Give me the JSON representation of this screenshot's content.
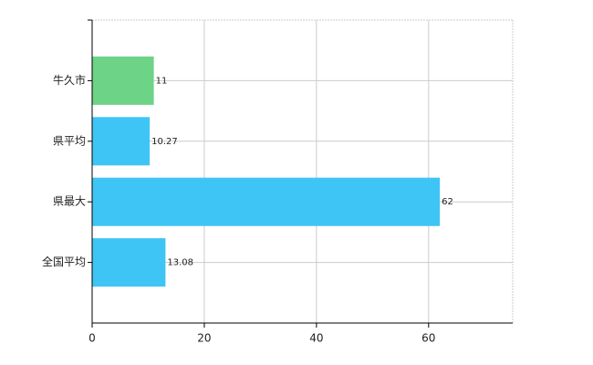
{
  "chart_data": {
    "type": "barh",
    "categories": [
      "牛久市",
      "県平均",
      "県最大",
      "全国平均"
    ],
    "values": [
      11,
      10.27,
      62,
      13.08
    ],
    "colors": [
      "#6dd387",
      "#3ec5f5",
      "#3ec5f5",
      "#3ec5f5"
    ],
    "xlim": [
      0,
      75
    ],
    "xticks": [
      0,
      20,
      40,
      60
    ],
    "grid": true
  }
}
